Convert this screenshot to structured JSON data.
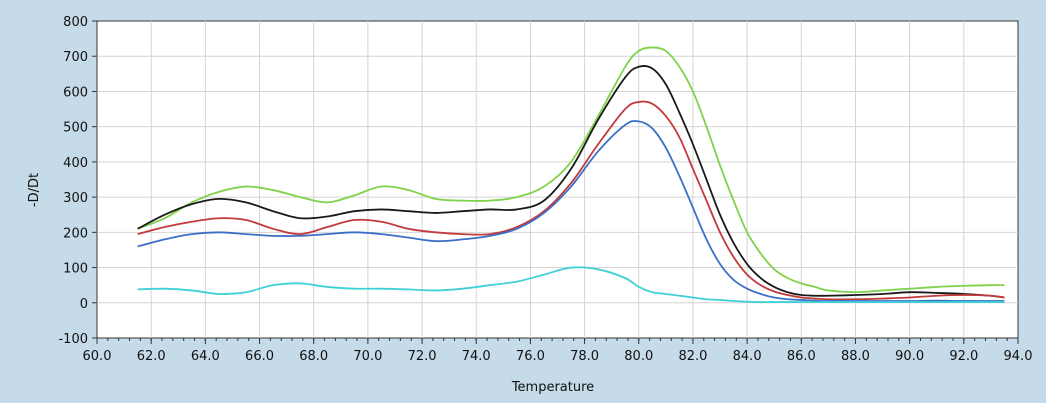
{
  "chart_data": {
    "type": "line",
    "xlabel": "Temperature",
    "ylabel": "-D/Dt",
    "xlim": [
      60,
      94
    ],
    "ylim": [
      -100,
      800
    ],
    "grid": true,
    "x_ticks": [
      "60.0",
      "62.0",
      "64.0",
      "66.0",
      "68.0",
      "70.0",
      "72.0",
      "74.0",
      "76.0",
      "78.0",
      "80.0",
      "82.0",
      "84.0",
      "86.0",
      "88.0",
      "90.0",
      "92.0",
      "94.0"
    ],
    "y_ticks": [
      "-100",
      "0",
      "100",
      "200",
      "300",
      "400",
      "500",
      "600",
      "700",
      "800"
    ],
    "series": [
      {
        "color": "#7fd24a",
        "x": [
          61.5,
          62.5,
          63.5,
          64.5,
          65.5,
          66.5,
          67.5,
          68.5,
          69.5,
          70.5,
          71.5,
          72.5,
          73.5,
          74.5,
          75.5,
          76.5,
          77.5,
          78.5,
          79.5,
          80.0,
          80.5,
          81.0,
          81.5,
          82.0,
          82.5,
          83.0,
          83.5,
          84.0,
          84.5,
          85.0,
          85.5,
          86.0,
          86.5,
          87.0,
          88.0,
          89.0,
          90.0,
          91.0,
          92.0,
          93.0,
          93.5
        ],
        "y": [
          210,
          240,
          285,
          315,
          330,
          320,
          300,
          285,
          305,
          330,
          320,
          295,
          290,
          290,
          300,
          330,
          400,
          530,
          670,
          715,
          725,
          715,
          670,
          600,
          500,
          390,
          290,
          200,
          140,
          95,
          70,
          55,
          45,
          35,
          30,
          35,
          40,
          45,
          48,
          50,
          50
        ]
      },
      {
        "color": "#1a1a1a",
        "x": [
          61.5,
          62.5,
          63.5,
          64.5,
          65.5,
          66.5,
          67.5,
          68.5,
          69.5,
          70.5,
          71.5,
          72.5,
          73.5,
          74.5,
          75.5,
          76.5,
          77.5,
          78.5,
          79.5,
          80.0,
          80.5,
          81.0,
          81.5,
          82.0,
          82.5,
          83.0,
          83.5,
          84.0,
          84.5,
          85.0,
          85.5,
          86.0,
          86.5,
          87.0,
          88.0,
          89.0,
          90.0,
          91.0,
          92.0,
          93.0,
          93.5
        ],
        "y": [
          210,
          250,
          280,
          295,
          285,
          260,
          240,
          245,
          260,
          265,
          260,
          255,
          260,
          265,
          265,
          290,
          380,
          520,
          640,
          670,
          665,
          620,
          540,
          450,
          350,
          250,
          170,
          110,
          70,
          45,
          30,
          22,
          20,
          20,
          22,
          25,
          30,
          28,
          25,
          20,
          15
        ]
      },
      {
        "color": "#c43a3a",
        "x": [
          61.5,
          62.5,
          63.5,
          64.5,
          65.5,
          66.5,
          67.5,
          68.5,
          69.5,
          70.5,
          71.5,
          72.5,
          73.5,
          74.5,
          75.5,
          76.5,
          77.5,
          78.5,
          79.5,
          80.0,
          80.5,
          81.0,
          81.5,
          82.0,
          82.5,
          83.0,
          83.5,
          84.0,
          84.5,
          85.0,
          85.5,
          86.0,
          86.5,
          87.0,
          88.0,
          89.0,
          90.0,
          91.0,
          92.0,
          93.0,
          93.5
        ],
        "y": [
          195,
          215,
          230,
          240,
          235,
          210,
          195,
          215,
          235,
          230,
          210,
          200,
          195,
          195,
          215,
          260,
          340,
          450,
          550,
          570,
          565,
          530,
          470,
          380,
          290,
          200,
          130,
          80,
          50,
          32,
          22,
          15,
          12,
          10,
          10,
          12,
          15,
          20,
          22,
          20,
          15
        ]
      },
      {
        "color": "#3a6fc9",
        "x": [
          61.5,
          62.5,
          63.5,
          64.5,
          65.5,
          66.5,
          67.5,
          68.5,
          69.5,
          70.5,
          71.5,
          72.5,
          73.5,
          74.5,
          75.5,
          76.5,
          77.5,
          78.5,
          79.5,
          80.0,
          80.5,
          81.0,
          81.5,
          82.0,
          82.5,
          83.0,
          83.5,
          84.0,
          84.5,
          85.0,
          85.5,
          86.0,
          86.5,
          87.0,
          88.0,
          89.0,
          90.0,
          91.0,
          92.0,
          93.0,
          93.5
        ],
        "y": [
          160,
          180,
          195,
          200,
          195,
          190,
          190,
          195,
          200,
          195,
          185,
          175,
          180,
          190,
          210,
          255,
          330,
          430,
          505,
          515,
          495,
          440,
          360,
          270,
          180,
          110,
          65,
          40,
          25,
          15,
          10,
          8,
          6,
          5,
          5,
          5,
          5,
          6,
          5,
          5,
          5
        ]
      },
      {
        "color": "#40d0d8",
        "x": [
          61.5,
          62.5,
          63.5,
          64.5,
          65.5,
          66.5,
          67.5,
          68.5,
          69.5,
          70.5,
          71.5,
          72.5,
          73.5,
          74.5,
          75.5,
          76.5,
          77.5,
          78.5,
          79.5,
          80.0,
          80.5,
          81.0,
          81.5,
          82.0,
          82.5,
          83.0,
          83.5,
          84.0,
          84.5,
          85.0,
          85.5,
          86.0,
          86.5,
          87.0,
          88.0,
          89.0,
          90.0,
          91.0,
          92.0,
          93.0,
          93.5
        ],
        "y": [
          38,
          40,
          35,
          25,
          30,
          50,
          55,
          45,
          40,
          40,
          38,
          35,
          40,
          50,
          60,
          80,
          100,
          95,
          70,
          45,
          30,
          25,
          20,
          15,
          10,
          8,
          5,
          3,
          2,
          2,
          2,
          2,
          2,
          2,
          2,
          2,
          2,
          2,
          2,
          2,
          2
        ]
      }
    ]
  }
}
